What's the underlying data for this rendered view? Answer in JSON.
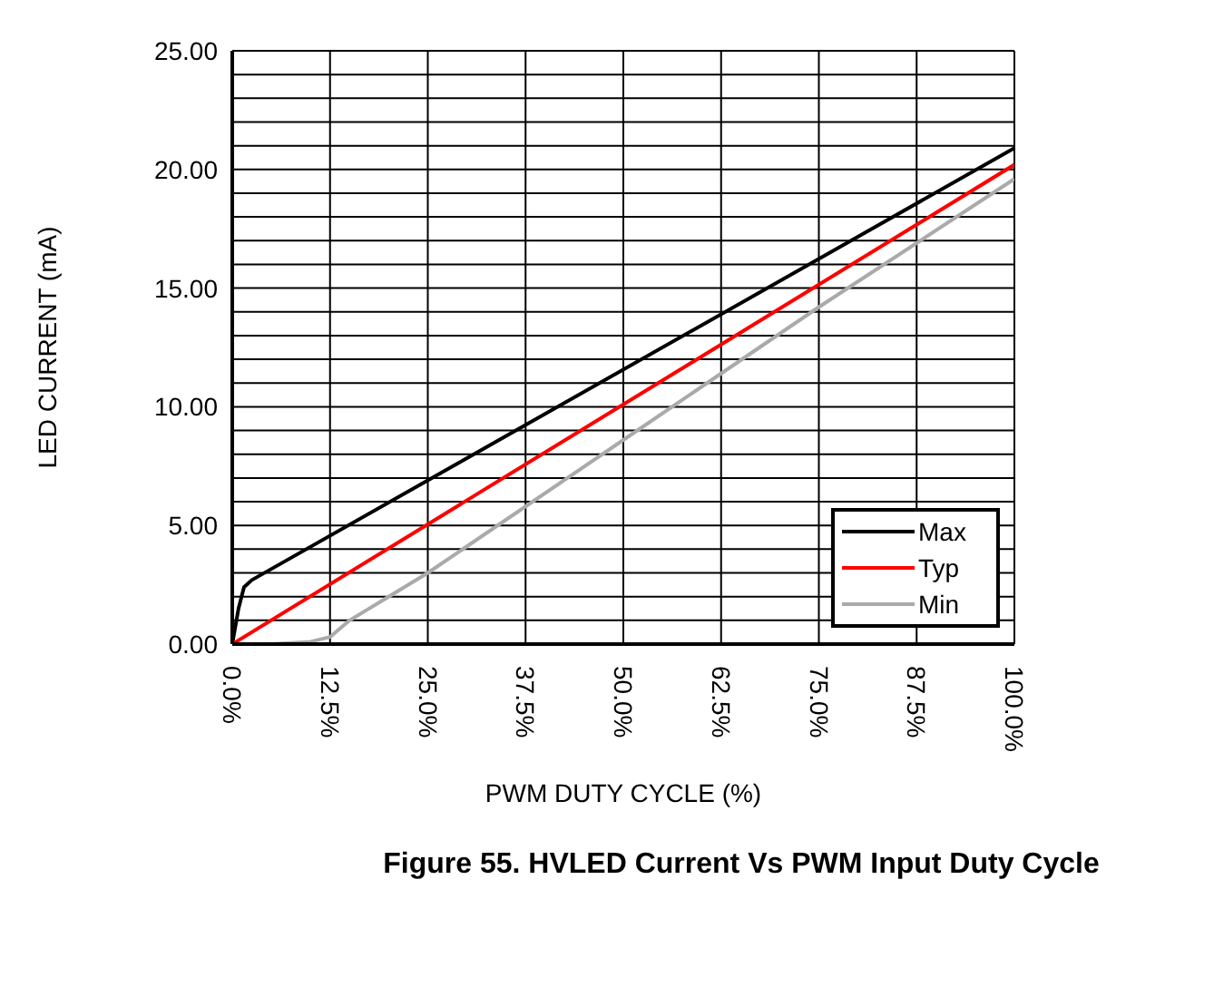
{
  "chart_data": {
    "type": "line",
    "title": "Figure 55. HVLED Current Vs PWM Input Duty Cycle",
    "xlabel": "PWM DUTY CYCLE (%)",
    "ylabel": "LED CURRENT (mA)",
    "series": [
      {
        "name": "Max",
        "color": "#000000",
        "x": [
          0,
          0.8,
          1.5,
          2.5,
          100
        ],
        "values": [
          0,
          1.5,
          2.4,
          2.7,
          20.9
        ]
      },
      {
        "name": "Typ",
        "color": "#ff0000",
        "x": [
          0,
          100
        ],
        "values": [
          0,
          20.2
        ]
      },
      {
        "name": "Min",
        "color": "#aaaaaa",
        "x": [
          0,
          5,
          10,
          12.5,
          15,
          20,
          25,
          50,
          75,
          100
        ],
        "values": [
          0,
          0,
          0.1,
          0.3,
          1.0,
          2.0,
          3.0,
          8.6,
          14.2,
          19.6
        ]
      }
    ],
    "xlim": [
      0,
      100
    ],
    "xticks": [
      {
        "value": 0,
        "label": "0.0%"
      },
      {
        "value": 12.5,
        "label": "12.5%"
      },
      {
        "value": 25,
        "label": "25.0%"
      },
      {
        "value": 37.5,
        "label": "37.5%"
      },
      {
        "value": 50,
        "label": "50.0%"
      },
      {
        "value": 62.5,
        "label": "62.5%"
      },
      {
        "value": 75,
        "label": "75.0%"
      },
      {
        "value": 87.5,
        "label": "87.5%"
      },
      {
        "value": 100,
        "label": "100.0%"
      }
    ],
    "ylim": [
      0,
      25
    ],
    "yticks": [
      {
        "value": 0,
        "label": "0.00"
      },
      {
        "value": 1,
        "label": null
      },
      {
        "value": 2,
        "label": null
      },
      {
        "value": 3,
        "label": null
      },
      {
        "value": 4,
        "label": null
      },
      {
        "value": 5,
        "label": "5.00"
      },
      {
        "value": 6,
        "label": null
      },
      {
        "value": 7,
        "label": null
      },
      {
        "value": 8,
        "label": null
      },
      {
        "value": 9,
        "label": null
      },
      {
        "value": 10,
        "label": "10.00"
      },
      {
        "value": 11,
        "label": null
      },
      {
        "value": 12,
        "label": null
      },
      {
        "value": 13,
        "label": null
      },
      {
        "value": 14,
        "label": null
      },
      {
        "value": 15,
        "label": "15.00"
      },
      {
        "value": 16,
        "label": null
      },
      {
        "value": 17,
        "label": null
      },
      {
        "value": 18,
        "label": null
      },
      {
        "value": 19,
        "label": null
      },
      {
        "value": 20,
        "label": "20.00"
      },
      {
        "value": 21,
        "label": null
      },
      {
        "value": 22,
        "label": null
      },
      {
        "value": 23,
        "label": null
      },
      {
        "value": 24,
        "label": null
      },
      {
        "value": 25,
        "label": "25.00"
      }
    ],
    "grid": true,
    "legend": "bottom right",
    "marker": "none",
    "line_style": "solid"
  }
}
